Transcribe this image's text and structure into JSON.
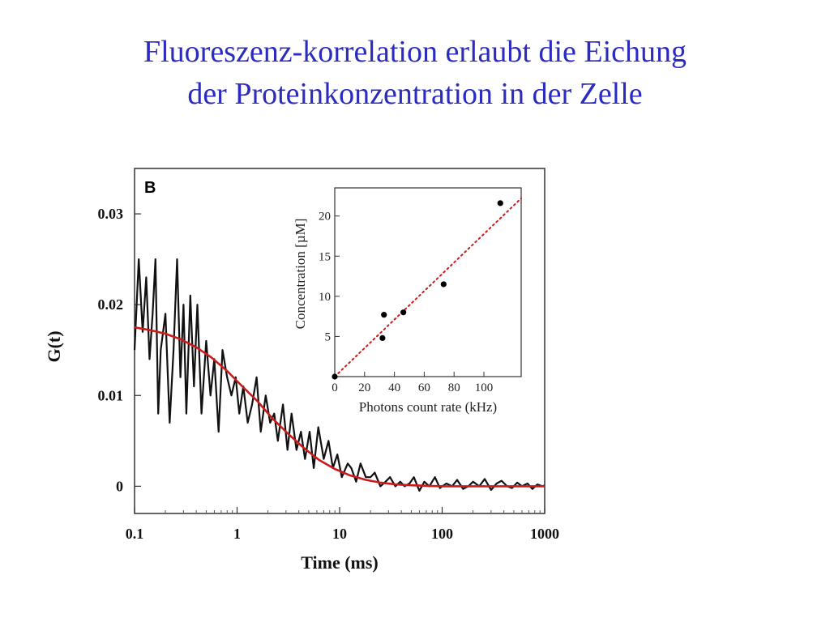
{
  "slide": {
    "title_line1": "Fluoreszenz-korrelation erlaubt die Eichung",
    "title_line2": "der Proteinkonzentration in der Zelle"
  },
  "colors": {
    "title": "#2b2bbf",
    "data_line": "#111111",
    "fit_line": "#cc1a1a"
  },
  "chart_data": [
    {
      "type": "line",
      "panel_label": "B",
      "xlabel": "Time (ms)",
      "ylabel": "G(t)",
      "x_scale": "log",
      "xlim": [
        0.1,
        1000
      ],
      "ylim": [
        -0.003,
        0.035
      ],
      "x_ticks": [
        0.1,
        1,
        10,
        100,
        1000
      ],
      "x_tick_labels": [
        "0.1",
        "1",
        "10",
        "100",
        "1000"
      ],
      "y_ticks": [
        0,
        0.01,
        0.02,
        0.03
      ],
      "y_tick_labels": [
        "0",
        "0.01",
        "0.02",
        "0.03"
      ],
      "grid": false,
      "series": [
        {
          "kind": "measured",
          "x": [
            0.1,
            0.11,
            0.12,
            0.13,
            0.14,
            0.15,
            0.16,
            0.17,
            0.18,
            0.2,
            0.22,
            0.24,
            0.26,
            0.28,
            0.3,
            0.32,
            0.35,
            0.38,
            0.41,
            0.45,
            0.5,
            0.55,
            0.6,
            0.66,
            0.72,
            0.8,
            0.88,
            0.97,
            1.05,
            1.15,
            1.27,
            1.4,
            1.55,
            1.7,
            1.9,
            2.1,
            2.3,
            2.5,
            2.8,
            3.1,
            3.4,
            3.8,
            4.2,
            4.6,
            5.1,
            5.6,
            6.2,
            7,
            7.8,
            8.6,
            9.5,
            10.5,
            12,
            13,
            14.5,
            16,
            18,
            20,
            22,
            25,
            28,
            31,
            35,
            39,
            43,
            48,
            53,
            60,
            67,
            75,
            85,
            95,
            110,
            125,
            140,
            160,
            180,
            200,
            230,
            260,
            300,
            340,
            380,
            430,
            480,
            540,
            600,
            680,
            760,
            850,
            950,
            1000
          ],
          "y": [
            0.015,
            0.025,
            0.017,
            0.023,
            0.014,
            0.019,
            0.025,
            0.008,
            0.015,
            0.019,
            0.007,
            0.015,
            0.025,
            0.012,
            0.02,
            0.008,
            0.021,
            0.011,
            0.02,
            0.008,
            0.016,
            0.01,
            0.014,
            0.006,
            0.015,
            0.012,
            0.01,
            0.012,
            0.008,
            0.011,
            0.007,
            0.009,
            0.012,
            0.006,
            0.01,
            0.007,
            0.008,
            0.005,
            0.009,
            0.004,
            0.008,
            0.004,
            0.006,
            0.003,
            0.006,
            0.002,
            0.0065,
            0.003,
            0.005,
            0.002,
            0.0035,
            0.001,
            0.0025,
            0.002,
            0.0005,
            0.0025,
            0.001,
            0.001,
            0.0015,
            0.0,
            0.0005,
            0.001,
            0.0,
            0.0005,
            0.0,
            0.0003,
            0.001,
            -0.0005,
            0.0005,
            0.0,
            0.001,
            -0.0002,
            0.0003,
            0.0,
            0.0007,
            -0.0003,
            0.0,
            0.0005,
            0.0,
            0.0008,
            -0.0004,
            0.0003,
            0.0006,
            0.0,
            -0.0002,
            0.0004,
            0.0,
            0.0003,
            -0.0003,
            0.0002,
            0.0,
            0.0001
          ]
        },
        {
          "kind": "fit",
          "x": [
            0.1,
            0.14,
            0.2,
            0.28,
            0.4,
            0.56,
            0.8,
            1.1,
            1.6,
            2.2,
            3.2,
            4.5,
            6.3,
            9,
            12.6,
            18,
            25,
            35,
            50,
            70,
            100,
            200,
            400,
            1000
          ],
          "y": [
            0.0175,
            0.0172,
            0.0168,
            0.0162,
            0.0153,
            0.0142,
            0.0127,
            0.0111,
            0.0093,
            0.0075,
            0.0057,
            0.0042,
            0.0029,
            0.0019,
            0.0012,
            0.0007,
            0.0004,
            0.0002,
            0.0001,
            5e-05,
            0.0,
            0.0,
            0.0,
            0.0
          ]
        }
      ]
    },
    {
      "type": "scatter",
      "xlabel": "Photons count rate (kHz)",
      "ylabel": "Concentration [µM]",
      "xlim": [
        0,
        125
      ],
      "ylim": [
        0,
        23.5
      ],
      "x_ticks": [
        0,
        20,
        40,
        60,
        80,
        100
      ],
      "x_tick_labels": [
        "0",
        "20",
        "40",
        "60",
        "80",
        "100"
      ],
      "y_ticks": [
        5,
        10,
        15,
        20
      ],
      "y_tick_labels": [
        "5",
        "10",
        "15",
        "20"
      ],
      "points": {
        "x": [
          0,
          32,
          33,
          46,
          73,
          111
        ],
        "y": [
          0,
          4.8,
          7.7,
          8.0,
          11.5,
          21.6
        ]
      },
      "fit_line": {
        "x": [
          0,
          125
        ],
        "y": [
          0,
          22.2
        ]
      }
    }
  ]
}
